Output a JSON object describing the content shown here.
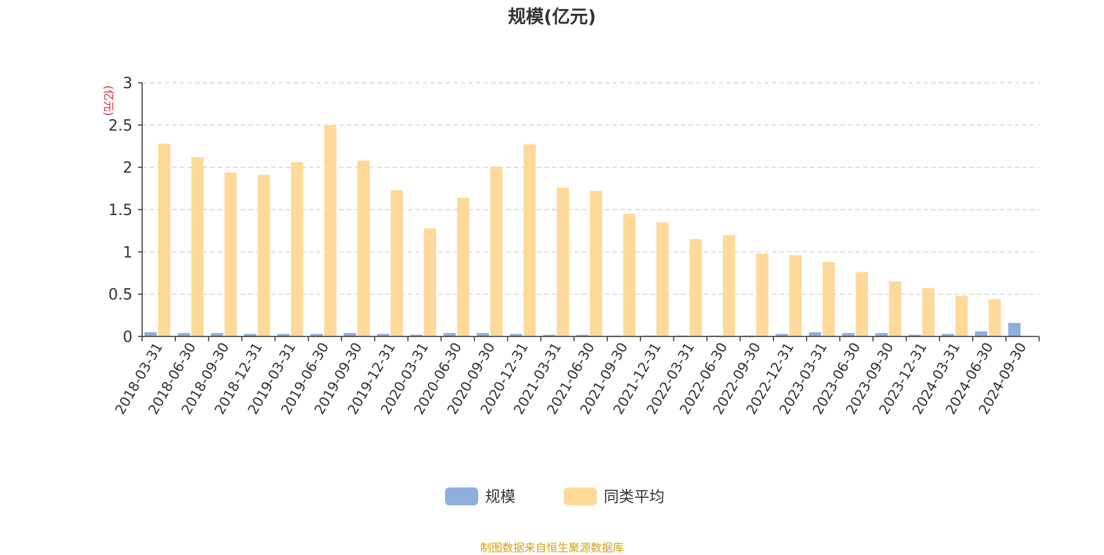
{
  "title": "规模(亿元)",
  "source_note": "制图数据来自恒生聚源数据库",
  "chart_data": {
    "type": "bar",
    "title": "规模(亿元)",
    "ylabel": "(亿元)",
    "ylim": [
      0,
      3
    ],
    "yticks": [
      "0",
      "0.5",
      "1",
      "1.5",
      "2",
      "2.5",
      "3"
    ],
    "grid": true,
    "legend_position": "bottom-center",
    "categories": [
      "2018-03-31",
      "2018-06-30",
      "2018-09-30",
      "2018-12-31",
      "2019-03-31",
      "2019-06-30",
      "2019-09-30",
      "2019-12-31",
      "2020-03-31",
      "2020-06-30",
      "2020-09-30",
      "2020-12-31",
      "2021-03-31",
      "2021-06-30",
      "2021-09-30",
      "2021-12-31",
      "2022-03-31",
      "2022-06-30",
      "2022-09-30",
      "2022-12-31",
      "2023-03-31",
      "2023-06-30",
      "2023-09-30",
      "2023-12-31",
      "2024-03-31",
      "2024-06-30",
      "2024-09-30"
    ],
    "series": [
      {
        "name": "规模",
        "color": "#8eaedc",
        "values": [
          0.05,
          0.04,
          0.04,
          0.03,
          0.03,
          0.03,
          0.04,
          0.03,
          0.02,
          0.04,
          0.04,
          0.03,
          0.02,
          0.02,
          0.01,
          0.01,
          0.01,
          0.01,
          0.01,
          0.03,
          0.05,
          0.04,
          0.04,
          0.02,
          0.03,
          0.06,
          0.16
        ]
      },
      {
        "name": "同类平均",
        "color": "#ffd99a",
        "values": [
          2.28,
          2.12,
          1.94,
          1.91,
          2.06,
          2.5,
          2.08,
          1.73,
          1.28,
          1.64,
          2.01,
          2.27,
          1.76,
          1.72,
          1.45,
          1.35,
          1.15,
          1.2,
          0.98,
          0.96,
          0.88,
          0.76,
          0.65,
          0.57,
          0.48,
          0.44,
          null
        ]
      }
    ]
  }
}
